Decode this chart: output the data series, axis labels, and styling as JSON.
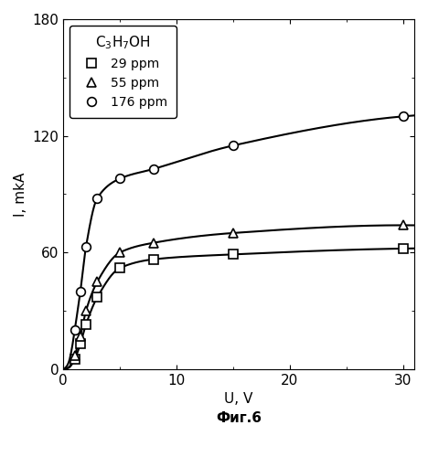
{
  "title": "",
  "xlabel": "U, V",
  "ylabel": "I, mkA",
  "fig_caption": "Фиг.6",
  "legend_title": "C$_3$H$_7$OH",
  "xlim": [
    0,
    31
  ],
  "ylim": [
    0,
    180
  ],
  "xticks": [
    0,
    10,
    20,
    30
  ],
  "yticks": [
    0,
    60,
    120,
    180
  ],
  "series": [
    {
      "label": "29 ppm",
      "marker": "s",
      "Imax": 63.0,
      "k": 0.85,
      "marker_x": [
        0.3,
        0.5,
        0.7,
        1.0,
        1.5,
        2.0,
        3.0,
        5.0,
        8.0,
        15.0,
        30.0
      ],
      "marker_y": [
        0.3,
        0.8,
        2.0,
        5.0,
        13.0,
        23.0,
        37.0,
        52.0,
        56.5,
        59.0,
        62.0
      ]
    },
    {
      "label": "55 ppm",
      "marker": "^",
      "Imax": 74.0,
      "k": 0.85,
      "marker_x": [
        0.3,
        0.5,
        0.7,
        1.0,
        1.5,
        2.0,
        3.0,
        5.0,
        8.0,
        15.0,
        30.0
      ],
      "marker_y": [
        0.4,
        1.0,
        2.5,
        7.0,
        17.0,
        30.0,
        45.0,
        60.0,
        65.0,
        70.0,
        74.0
      ]
    },
    {
      "label": "176 ppm",
      "marker": "o",
      "Imax": 135.0,
      "k": 0.6,
      "marker_x": [
        0.3,
        0.5,
        0.7,
        1.0,
        1.5,
        2.0,
        3.0,
        5.0,
        8.0,
        15.0,
        30.0
      ],
      "marker_y": [
        1.5,
        4.0,
        9.0,
        20.0,
        40.0,
        63.0,
        88.0,
        98.0,
        103.0,
        115.0,
        130.0
      ]
    }
  ],
  "background_color": "#ffffff",
  "line_color": "black",
  "marker_facecolor": "white",
  "marker_edgecolor": "black",
  "marker_size": 7,
  "linewidth": 1.5,
  "font_size": 11,
  "legend_fontsize": 10,
  "caption_fontsize": 11,
  "visible_marker_indices": [
    3,
    4,
    5,
    6,
    7,
    8,
    9,
    10
  ]
}
